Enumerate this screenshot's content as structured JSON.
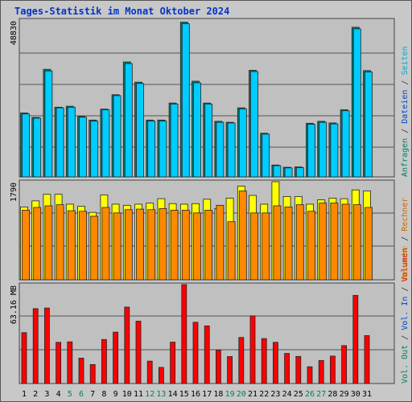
{
  "title": "Tages-Statistik im Monat Oktober 2024",
  "chart_data": [
    {
      "type": "bar",
      "panel": "top",
      "ytick_label": "48830",
      "ylim": [
        0,
        48830
      ],
      "right_label_parts": [
        {
          "text": "Anfragen",
          "color": "#008060"
        },
        {
          "text": " / ",
          "color": "#333333"
        },
        {
          "text": "Dateien",
          "color": "#0044cc"
        },
        {
          "text": " / ",
          "color": "#333333"
        },
        {
          "text": "Seiten",
          "color": "#00aacc"
        }
      ],
      "series": [
        {
          "name": "Anfragen",
          "color": "#008080",
          "values": [
            19900,
            18500,
            33500,
            21700,
            22000,
            18800,
            17700,
            21100,
            25600,
            35800,
            29500,
            17700,
            17700,
            23000,
            48200,
            29800,
            23000,
            17300,
            17000,
            21500,
            33200,
            13600,
            3700,
            3000,
            3100,
            16700,
            17300,
            16800,
            20900,
            46600,
            33100
          ]
        },
        {
          "name": "Dateien",
          "color": "#00ccff",
          "values": [
            19600,
            18300,
            33000,
            21500,
            21700,
            18600,
            17400,
            20900,
            25300,
            35300,
            29100,
            17400,
            17400,
            22700,
            47700,
            29300,
            22700,
            17000,
            16800,
            21200,
            32800,
            13300,
            3500,
            2800,
            2900,
            16400,
            17000,
            16500,
            20600,
            46100,
            32700
          ]
        }
      ]
    },
    {
      "type": "bar",
      "panel": "middle",
      "ytick_label": "1790",
      "ylim": [
        0,
        1790
      ],
      "right_label_parts": [
        {
          "text": "Besuche",
          "color": "#ccaa00"
        },
        {
          "text": " / ",
          "color": "#333333"
        },
        {
          "text": "Rechner",
          "color": "#cc6600"
        }
      ],
      "series": [
        {
          "name": "Besuche",
          "color": "#ffff00",
          "values": [
            1330,
            1440,
            1560,
            1560,
            1380,
            1340,
            1230,
            1550,
            1380,
            1360,
            1380,
            1400,
            1480,
            1390,
            1380,
            1390,
            1470,
            1300,
            1490,
            1710,
            1540,
            1380,
            1790,
            1520,
            1520,
            1380,
            1460,
            1490,
            1480,
            1640,
            1620
          ]
        },
        {
          "name": "Rechner",
          "color": "#ff8800",
          "values": [
            1270,
            1320,
            1350,
            1370,
            1260,
            1250,
            1160,
            1320,
            1220,
            1280,
            1290,
            1280,
            1300,
            1270,
            1270,
            1220,
            1270,
            1360,
            1060,
            1620,
            1220,
            1220,
            1350,
            1330,
            1370,
            1250,
            1400,
            1400,
            1380,
            1370,
            1320
          ]
        }
      ]
    },
    {
      "type": "bar",
      "panel": "bottom",
      "ytick_label": "63.16 MB",
      "ylim": [
        0,
        63.16
      ],
      "right_label_parts": [
        {
          "text": "Vol. Out",
          "color": "#008060"
        },
        {
          "text": " / ",
          "color": "#333333"
        },
        {
          "text": "Vol. In",
          "color": "#0044cc"
        },
        {
          "text": " / ",
          "color": "#333333"
        },
        {
          "text": "Volumen",
          "color": "#dd0000"
        }
      ],
      "series": [
        {
          "name": "Volumen",
          "color": "#ff0000",
          "values": [
            32.5,
            47.8,
            48.2,
            26.3,
            26.6,
            16.2,
            12.1,
            28.1,
            32.8,
            48.8,
            39.8,
            14.3,
            10.3,
            26.4,
            63.2,
            39.1,
            36.8,
            21.3,
            17.2,
            29.4,
            43.2,
            28.7,
            26.3,
            19.2,
            17.3,
            10.7,
            14.7,
            17.5,
            24.2,
            56.3,
            30.6
          ]
        }
      ]
    }
  ],
  "x_labels": [
    {
      "text": "1",
      "color": "#000000"
    },
    {
      "text": "2",
      "color": "#000000"
    },
    {
      "text": "3",
      "color": "#000000"
    },
    {
      "text": "4",
      "color": "#000000"
    },
    {
      "text": "5",
      "color": "#008060"
    },
    {
      "text": "6",
      "color": "#008060"
    },
    {
      "text": "7",
      "color": "#000000"
    },
    {
      "text": "8",
      "color": "#000000"
    },
    {
      "text": "9",
      "color": "#000000"
    },
    {
      "text": "10",
      "color": "#000000"
    },
    {
      "text": "11",
      "color": "#000000"
    },
    {
      "text": "12",
      "color": "#008060"
    },
    {
      "text": "13",
      "color": "#008060"
    },
    {
      "text": "14",
      "color": "#000000"
    },
    {
      "text": "15",
      "color": "#000000"
    },
    {
      "text": "16",
      "color": "#000000"
    },
    {
      "text": "17",
      "color": "#000000"
    },
    {
      "text": "18",
      "color": "#000000"
    },
    {
      "text": "19",
      "color": "#008060"
    },
    {
      "text": "20",
      "color": "#008060"
    },
    {
      "text": "21",
      "color": "#000000"
    },
    {
      "text": "22",
      "color": "#000000"
    },
    {
      "text": "23",
      "color": "#000000"
    },
    {
      "text": "24",
      "color": "#000000"
    },
    {
      "text": "25",
      "color": "#000000"
    },
    {
      "text": "26",
      "color": "#008060"
    },
    {
      "text": "27",
      "color": "#008060"
    },
    {
      "text": "28",
      "color": "#000000"
    },
    {
      "text": "29",
      "color": "#000000"
    },
    {
      "text": "30",
      "color": "#000000"
    },
    {
      "text": "31",
      "color": "#000000"
    }
  ],
  "colors": {
    "background": "#c0c0c0",
    "plot_bg": "#c0c0c0",
    "title": "#0033cc"
  }
}
